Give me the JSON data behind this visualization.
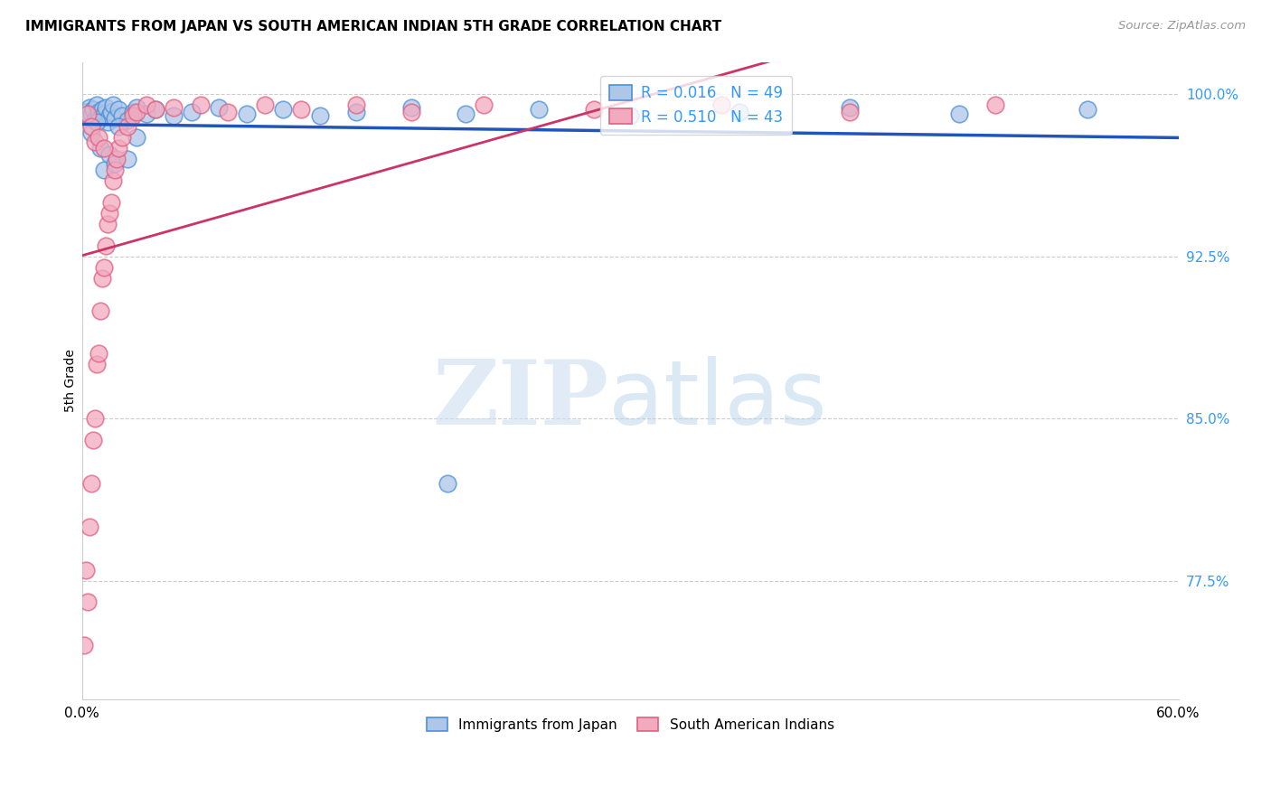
{
  "title": "IMMIGRANTS FROM JAPAN VS SOUTH AMERICAN INDIAN 5TH GRADE CORRELATION CHART",
  "source": "Source: ZipAtlas.com",
  "ylabel": "5th Grade",
  "yticks": [
    100.0,
    92.5,
    85.0,
    77.5
  ],
  "ytick_labels": [
    "100.0%",
    "92.5%",
    "85.0%",
    "77.5%"
  ],
  "xmin": 0.0,
  "xmax": 60.0,
  "ymin": 72.0,
  "ymax": 101.5,
  "legend_R_japan": "R = 0.016",
  "legend_N_japan": "N = 49",
  "legend_R_indian": "R = 0.510",
  "legend_N_indian": "N = 43",
  "japan_color": "#aec6e8",
  "indian_color": "#f2aabf",
  "japan_edge_color": "#4a90d9",
  "indian_edge_color": "#e06080",
  "japan_line_color": "#2255bb",
  "indian_line_color": "#cc3366",
  "japan_scatter_x": [
    0.2,
    0.3,
    0.4,
    0.5,
    0.6,
    0.7,
    0.8,
    0.9,
    1.0,
    1.1,
    1.2,
    1.3,
    1.4,
    1.5,
    1.6,
    1.7,
    1.8,
    2.0,
    2.2,
    2.5,
    2.8,
    3.0,
    3.5,
    4.0,
    5.0,
    6.0,
    7.5,
    9.0,
    11.0,
    13.0,
    15.0,
    18.0,
    21.0,
    25.0,
    30.0,
    36.0,
    42.0,
    48.0,
    55.0,
    1.0,
    1.2,
    1.5,
    1.8,
    2.0,
    2.5,
    3.0,
    0.5,
    0.8,
    20.0
  ],
  "japan_scatter_y": [
    99.2,
    99.0,
    99.4,
    99.1,
    99.3,
    98.8,
    99.5,
    99.2,
    98.9,
    99.3,
    99.1,
    99.4,
    98.7,
    99.0,
    99.2,
    99.5,
    98.9,
    99.3,
    99.0,
    98.8,
    99.2,
    99.4,
    99.1,
    99.3,
    99.0,
    99.2,
    99.4,
    99.1,
    99.3,
    99.0,
    99.2,
    99.4,
    99.1,
    99.3,
    99.0,
    99.2,
    99.4,
    99.1,
    99.3,
    97.5,
    96.5,
    97.2,
    96.8,
    98.5,
    97.0,
    98.0,
    98.2,
    98.7,
    82.0
  ],
  "indian_scatter_x": [
    0.1,
    0.2,
    0.3,
    0.4,
    0.5,
    0.6,
    0.7,
    0.8,
    0.9,
    1.0,
    1.1,
    1.2,
    1.3,
    1.4,
    1.5,
    1.6,
    1.7,
    1.8,
    1.9,
    2.0,
    2.2,
    2.5,
    2.8,
    3.0,
    3.5,
    4.0,
    5.0,
    6.5,
    8.0,
    10.0,
    12.0,
    15.0,
    18.0,
    22.0,
    28.0,
    35.0,
    42.0,
    50.0,
    0.3,
    0.5,
    0.7,
    0.9,
    1.2
  ],
  "indian_scatter_y": [
    74.5,
    78.0,
    76.5,
    80.0,
    82.0,
    84.0,
    85.0,
    87.5,
    88.0,
    90.0,
    91.5,
    92.0,
    93.0,
    94.0,
    94.5,
    95.0,
    96.0,
    96.5,
    97.0,
    97.5,
    98.0,
    98.5,
    99.0,
    99.2,
    99.5,
    99.3,
    99.4,
    99.5,
    99.2,
    99.5,
    99.3,
    99.5,
    99.2,
    99.5,
    99.3,
    99.5,
    99.2,
    99.5,
    99.1,
    98.5,
    97.8,
    98.0,
    97.5
  ],
  "background_color": "#ffffff",
  "grid_color": "#cccccc",
  "watermark_zip_color": "#cddff0",
  "watermark_atlas_color": "#b8d4ec"
}
